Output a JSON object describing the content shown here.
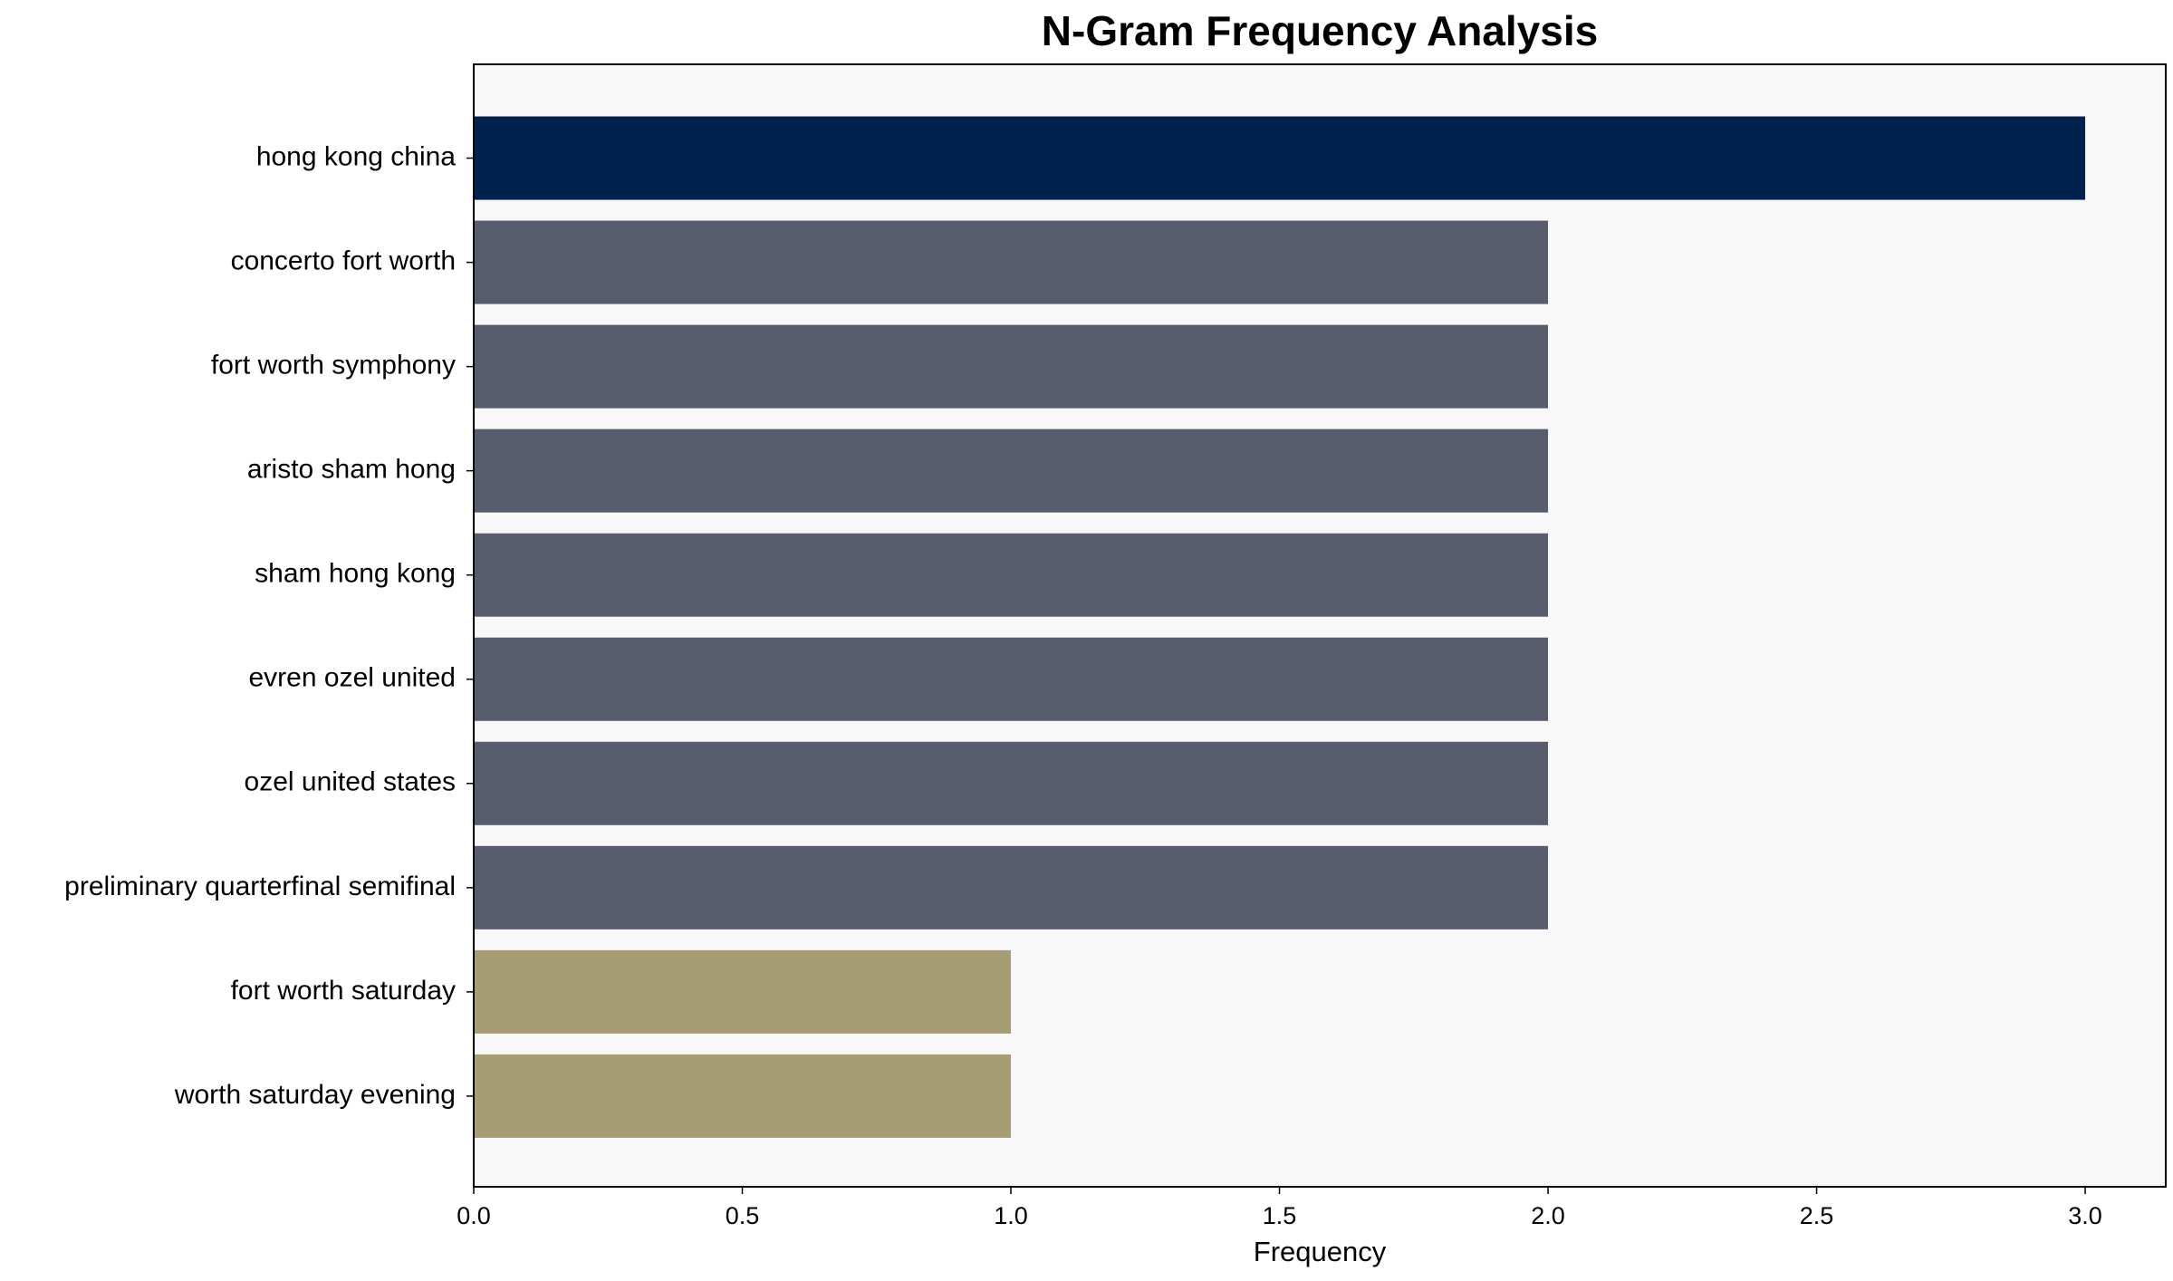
{
  "chart_data": {
    "type": "barh",
    "title": "N-Gram Frequency Analysis",
    "xlabel": "Frequency",
    "categories": [
      "hong kong china",
      "concerto fort worth",
      "fort worth symphony",
      "aristo sham hong",
      "sham hong kong",
      "evren ozel united",
      "ozel united states",
      "preliminary quarterfinal semifinal",
      "fort worth saturday",
      "worth saturday evening"
    ],
    "values": [
      3,
      2,
      2,
      2,
      2,
      2,
      2,
      2,
      1,
      1
    ],
    "colors": [
      "#00224e",
      "#575d6d",
      "#575d6d",
      "#575d6d",
      "#575d6d",
      "#575d6d",
      "#575d6d",
      "#575d6d",
      "#a69d75",
      "#a69d75"
    ],
    "xlim": [
      0,
      3.15
    ],
    "xticks": [
      {
        "value": 0,
        "label": "0.0"
      },
      0.5,
      {
        "value": 1,
        "label": "1.0"
      },
      1.5,
      {
        "value": 2,
        "label": "2.0"
      },
      2.5,
      {
        "value": 3,
        "label": "3.0"
      }
    ],
    "background": "#f8f8f9"
  }
}
